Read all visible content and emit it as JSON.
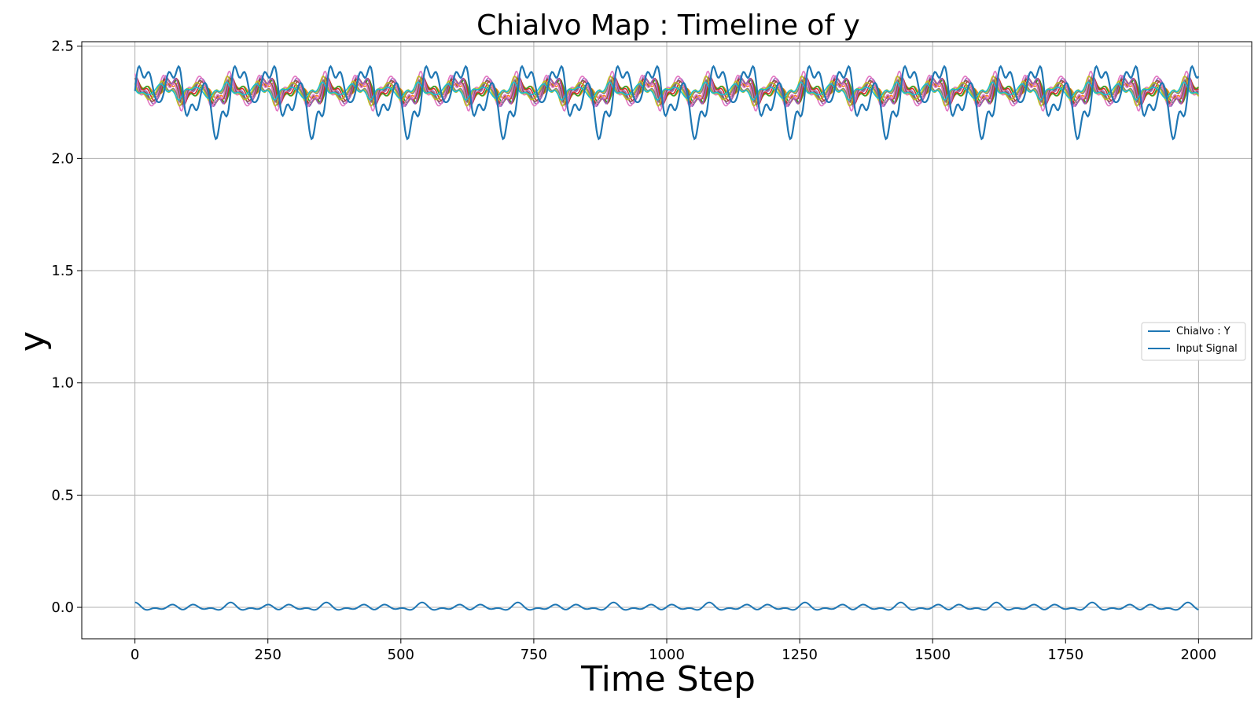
{
  "chart_data": {
    "type": "line",
    "title": "Chialvo Map : Timeline of y",
    "xlabel": "Time Step",
    "ylabel": "y",
    "xlim": [
      -100,
      2100
    ],
    "ylim": [
      -0.14,
      2.52
    ],
    "x_ticks": [
      0,
      250,
      500,
      750,
      1000,
      1250,
      1500,
      1750,
      2000
    ],
    "y_ticks": [
      0.0,
      0.5,
      1.0,
      1.5,
      2.0,
      2.5
    ],
    "x_tick_labels": [
      "0",
      "250",
      "500",
      "750",
      "1000",
      "1250",
      "1500",
      "1750",
      "2000"
    ],
    "y_tick_labels": [
      "0.0",
      "0.5",
      "1.0",
      "1.5",
      "2.0",
      "2.5"
    ],
    "grid": true,
    "legend_position": "center-right",
    "x_range": [
      0,
      2000
    ],
    "series_baseline": 2.3,
    "series_sampling_step": 2,
    "series": [
      {
        "name": "Chialvo : Y",
        "color": "#1f77b4",
        "legend": true,
        "component_amplitudes": [
          0.06,
          0.05,
          0.04,
          0.02
        ],
        "dip_amplitude": 0.14,
        "dip_period": 180
      },
      {
        "legend": false,
        "color": "#ff7f0e",
        "component_amplitudes": [
          0.02,
          0.015,
          0.015,
          0.005
        ]
      },
      {
        "legend": false,
        "color": "#2ca02c",
        "component_amplitudes": [
          0.03,
          0.02,
          0.02,
          0.01
        ]
      },
      {
        "legend": false,
        "color": "#d62728",
        "component_amplitudes": [
          0.04,
          0.025,
          0.02,
          0.01
        ]
      },
      {
        "legend": false,
        "color": "#9467bd",
        "component_amplitudes": [
          0.045,
          0.03,
          0.025,
          0.01
        ]
      },
      {
        "legend": false,
        "color": "#8c564b",
        "component_amplitudes": [
          0.035,
          0.025,
          0.02,
          0.01
        ]
      },
      {
        "legend": false,
        "color": "#e377c2",
        "component_amplitudes": [
          0.05,
          0.035,
          0.025,
          0.01
        ]
      },
      {
        "legend": false,
        "color": "#7f7f7f",
        "component_amplitudes": [
          0.025,
          0.02,
          0.015,
          0.005
        ]
      },
      {
        "legend": false,
        "color": "#bcbd22",
        "component_amplitudes": [
          0.03,
          0.025,
          0.02,
          0.005
        ]
      },
      {
        "legend": false,
        "color": "#17becf",
        "component_amplitudes": [
          0.02,
          0.015,
          0.01,
          0.005
        ]
      }
    ],
    "input_signal": {
      "name": "Input Signal",
      "color": "#1f77b4",
      "periods": [
        90,
        60,
        36
      ],
      "amplitudes": [
        0.006,
        0.008,
        0.008
      ]
    },
    "envelope_periods": [
      36,
      60,
      90,
      45
    ]
  }
}
